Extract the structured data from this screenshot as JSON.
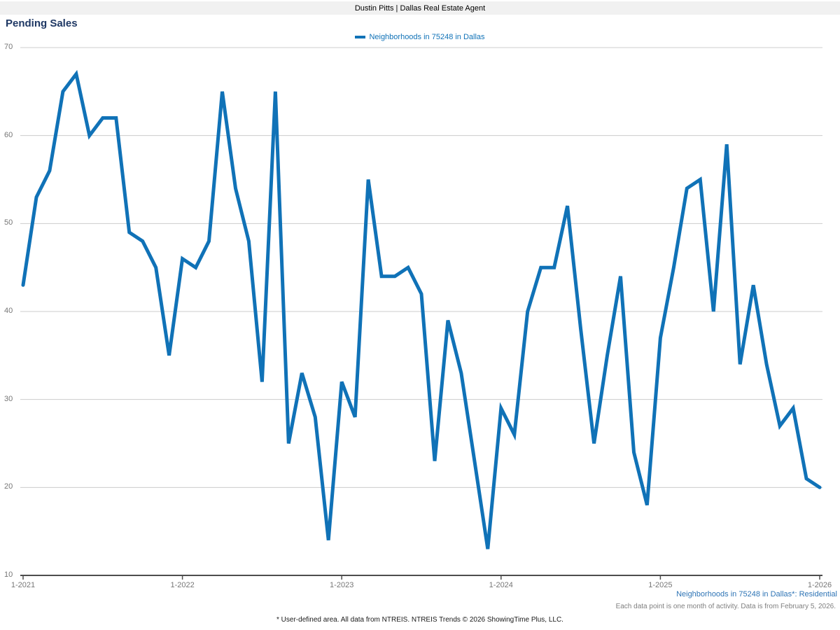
{
  "header": {
    "title": "Dustin Pitts | Dallas Real Estate Agent"
  },
  "page_title": "Pending Sales",
  "legend": {
    "label": "Neighborhoods in 75248 in Dallas",
    "swatch_icon": "line-swatch"
  },
  "footer": {
    "series_note": "Neighborhoods in 75248 in Dallas*: Residential",
    "data_note": "Each data point is one month of activity. Data is from February 5, 2026.",
    "disclaimer": "* User-defined area. All data from NTREIS. NTREIS Trends © 2026 ShowingTime Plus, LLC."
  },
  "colors": {
    "line": "#1072b7",
    "title": "#1f3864",
    "legend_text": "#1072b7",
    "series_note_text": "#2e74b5",
    "gridline": "#cccccc",
    "axis": "#4d4d4d",
    "tick_label": "#767676",
    "header_bar_bg": "#f1f1f1"
  },
  "chart_data": {
    "type": "line",
    "title": "Pending Sales",
    "xlabel": "",
    "ylabel": "",
    "ylim": [
      10,
      70
    ],
    "grid": "horizontal",
    "legend_position": "top-center",
    "y_ticks": [
      70,
      60,
      50,
      40,
      30,
      20,
      10
    ],
    "x_tick_labels": [
      "1-2021",
      "1-2022",
      "1-2023",
      "1-2024",
      "1-2025",
      "1-2026"
    ],
    "x_tick_month_index": [
      0,
      12,
      24,
      36,
      48,
      60
    ],
    "months": [
      "1-2021",
      "2-2021",
      "3-2021",
      "4-2021",
      "5-2021",
      "6-2021",
      "7-2021",
      "8-2021",
      "9-2021",
      "10-2021",
      "11-2021",
      "12-2021",
      "1-2022",
      "2-2022",
      "3-2022",
      "4-2022",
      "5-2022",
      "6-2022",
      "7-2022",
      "8-2022",
      "9-2022",
      "10-2022",
      "11-2022",
      "12-2022",
      "1-2023",
      "2-2023",
      "3-2023",
      "4-2023",
      "5-2023",
      "6-2023",
      "7-2023",
      "8-2023",
      "9-2023",
      "10-2023",
      "11-2023",
      "12-2023",
      "1-2024",
      "2-2024",
      "3-2024",
      "4-2024",
      "5-2024",
      "6-2024",
      "7-2024",
      "8-2024",
      "9-2024",
      "10-2024",
      "11-2024",
      "12-2024",
      "1-2025",
      "2-2025",
      "3-2025",
      "4-2025",
      "5-2025",
      "6-2025",
      "7-2025",
      "8-2025",
      "9-2025",
      "10-2025",
      "11-2025",
      "12-2025",
      "1-2026"
    ],
    "series": [
      {
        "name": "Neighborhoods in 75248 in Dallas",
        "values": [
          43,
          53,
          56,
          65,
          67,
          60,
          62,
          62,
          49,
          48,
          45,
          35,
          46,
          45,
          48,
          65,
          54,
          48,
          32,
          65,
          25,
          33,
          28,
          14,
          32,
          28,
          55,
          44,
          44,
          45,
          42,
          23,
          39,
          33,
          23,
          13,
          29,
          26,
          40,
          45,
          45,
          52,
          38,
          25,
          35,
          44,
          24,
          18,
          37,
          45,
          54,
          55,
          40,
          59,
          34,
          43,
          34,
          27,
          29,
          21,
          20
        ]
      }
    ]
  }
}
